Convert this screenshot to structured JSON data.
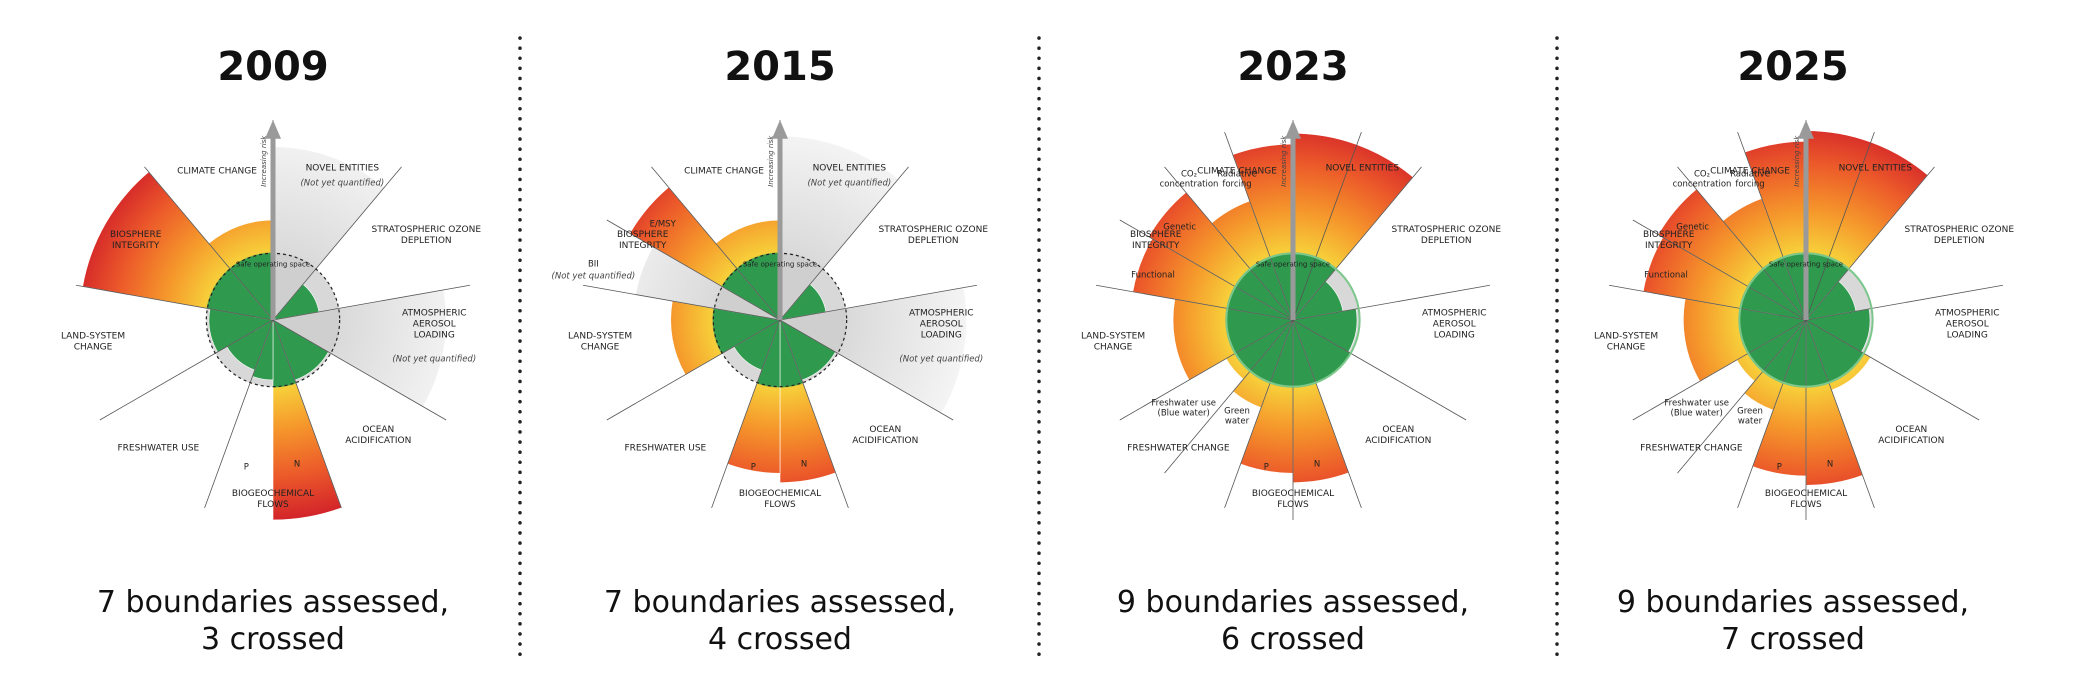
{
  "panels": [
    {
      "year": "2009",
      "caption": [
        "7 boundaries assessed,",
        "3 crossed"
      ],
      "labels": {
        "climate_change": [
          "CLIMATE CHANGE"
        ],
        "novel_entities": [
          "NOVEL ENTITIES"
        ],
        "novel_note": [
          "(Not yet quantified)"
        ],
        "ozone": [
          "STRATOSPHERIC OZONE",
          "DEPLETION"
        ],
        "aerosol": [
          "ATMOSPHERIC",
          "AEROSOL",
          "LOADING"
        ],
        "aerosol_note": [
          "(Not yet quantified)"
        ],
        "ocean": [
          "OCEAN",
          "ACIDIFICATION"
        ],
        "biogeochemical": [
          "BIOGEOCHEMICAL",
          "FLOWS"
        ],
        "freshwater": [
          "FRESHWATER USE"
        ],
        "land_system": [
          "LAND-SYSTEM",
          "CHANGE"
        ],
        "biosphere": [
          "BIOSPHERE",
          "INTEGRITY"
        ],
        "p": [
          "P"
        ],
        "n": [
          "N"
        ],
        "increasing_risk": [
          "Increasing risk"
        ],
        "safe_space": [
          "Safe operating space"
        ]
      }
    },
    {
      "year": "2015",
      "caption": [
        "7 boundaries assessed,",
        "4 crossed"
      ],
      "labels": {
        "climate_change": [
          "CLIMATE CHANGE"
        ],
        "novel_entities": [
          "NOVEL ENTITIES"
        ],
        "novel_note": [
          "(Not yet quantified)"
        ],
        "ozone": [
          "STRATOSPHERIC OZONE",
          "DEPLETION"
        ],
        "aerosol": [
          "ATMOSPHERIC",
          "AEROSOL",
          "LOADING"
        ],
        "aerosol_note": [
          "(Not yet quantified)"
        ],
        "ocean": [
          "OCEAN",
          "ACIDIFICATION"
        ],
        "biogeochemical": [
          "BIOGEOCHEMICAL",
          "FLOWS"
        ],
        "freshwater": [
          "FRESHWATER USE"
        ],
        "land_system": [
          "LAND-SYSTEM",
          "CHANGE"
        ],
        "biosphere": [
          "BIOSPHERE",
          "INTEGRITY"
        ],
        "e_msy": [
          "E/MSY"
        ],
        "bii": [
          "BII"
        ],
        "bii_note": [
          "(Not yet quantified)"
        ],
        "p": [
          "P"
        ],
        "n": [
          "N"
        ],
        "increasing_risk": [
          "Increasing risk"
        ],
        "safe_space": [
          "Safe operating space"
        ]
      }
    },
    {
      "year": "2023",
      "caption": [
        "9 boundaries assessed,",
        "6 crossed"
      ],
      "labels": {
        "climate_change": [
          "CLIMATE CHANGE"
        ],
        "novel_entities": [
          "NOVEL ENTITIES"
        ],
        "ozone": [
          "STRATOSPHERIC OZONE",
          "DEPLETION"
        ],
        "aerosol": [
          "ATMOSPHERIC",
          "AEROSOL",
          "LOADING"
        ],
        "ocean": [
          "OCEAN",
          "ACIDIFICATION"
        ],
        "biogeochemical": [
          "BIOGEOCHEMICAL",
          "FLOWS"
        ],
        "freshwater": [
          "FRESHWATER CHANGE"
        ],
        "land_system": [
          "LAND-SYSTEM",
          "CHANGE"
        ],
        "biosphere": [
          "BIOSPHERE",
          "INTEGRITY"
        ],
        "genetic": [
          "Genetic"
        ],
        "functional": [
          "Functional"
        ],
        "co2": [
          "CO₂",
          "concentration"
        ],
        "radiative": [
          "Radiative",
          "forcing"
        ],
        "blue_water": [
          "Freshwater use",
          "(Blue water)"
        ],
        "green_water": [
          "Green",
          "water"
        ],
        "p": [
          "P"
        ],
        "n": [
          "N"
        ],
        "increasing_risk": [
          "Increasing risk"
        ],
        "safe_space": [
          "Safe operating space"
        ]
      }
    },
    {
      "year": "2025",
      "caption": [
        "9 boundaries assessed,",
        "7 crossed"
      ],
      "labels": {
        "climate_change": [
          "CLIMATE CHANGE"
        ],
        "novel_entities": [
          "NOVEL ENTITIES"
        ],
        "ozone": [
          "STRATOSPHERIC OZONE",
          "DEPLETION"
        ],
        "aerosol": [
          "ATMOSPHERIC",
          "AEROSOL",
          "LOADING"
        ],
        "ocean": [
          "OCEAN",
          "ACIDIFICATION"
        ],
        "biogeochemical": [
          "BIOGEOCHEMICAL",
          "FLOWS"
        ],
        "freshwater": [
          "FRESHWATER CHANGE"
        ],
        "land_system": [
          "LAND-SYSTEM",
          "CHANGE"
        ],
        "biosphere": [
          "BIOSPHERE",
          "INTEGRITY"
        ],
        "genetic": [
          "Genetic"
        ],
        "functional": [
          "Functional"
        ],
        "co2": [
          "CO₂",
          "concentration"
        ],
        "radiative": [
          "Radiative",
          "forcing"
        ],
        "blue_water": [
          "Freshwater use",
          "(Blue water)"
        ],
        "green_water": [
          "Green",
          "water"
        ],
        "p": [
          "P"
        ],
        "n": [
          "N"
        ],
        "increasing_risk": [
          "Increasing risk"
        ],
        "safe_space": [
          "Safe operating space"
        ]
      }
    }
  ]
}
